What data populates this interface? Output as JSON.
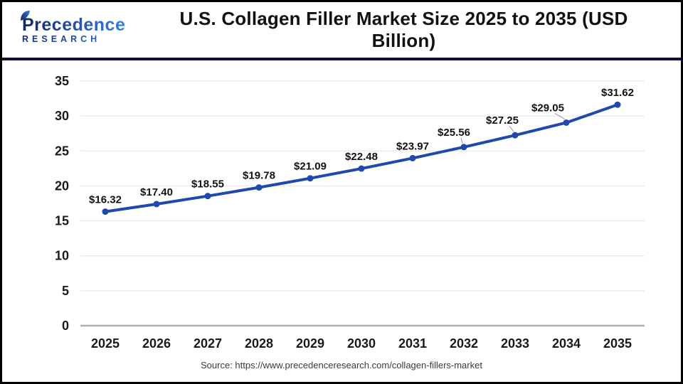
{
  "header": {
    "logo": {
      "line1": "Precedence",
      "line2": "RESEARCH"
    },
    "title": "U.S. Collagen Filler Market Size 2025 to 2035 (USD Billion)"
  },
  "footer": {
    "source": "Source: https://www.precedenceresearch.com/collagen-fillers-market"
  },
  "colors": {
    "accent_line": "#2149ac",
    "separator": "#0e1038",
    "page_border": "#000000",
    "grid": "#e8e8e8",
    "axis": "#b0b0b0",
    "leader": "#a6a6a6",
    "tick_text": "#1a1a1a",
    "label_text": "#111111",
    "source_text": "#3a3a3a",
    "logo_gradient_start": "#14265c",
    "logo_gradient_end": "#2f7fe0"
  },
  "chart_data": {
    "type": "line",
    "title": "U.S. Collagen Filler Market Size 2025 to 2035 (USD Billion)",
    "categories": [
      "2025",
      "2026",
      "2027",
      "2028",
      "2029",
      "2030",
      "2031",
      "2032",
      "2033",
      "2034",
      "2035"
    ],
    "series": [
      {
        "name": "U.S. Collagen Filler Market Size (USD Billion)",
        "values": [
          16.32,
          17.4,
          18.55,
          19.78,
          21.09,
          22.48,
          23.97,
          25.56,
          27.25,
          29.05,
          31.62
        ]
      }
    ],
    "point_labels": [
      "$16.32",
      "$17.40",
      "$18.55",
      "$19.78",
      "$21.09",
      "$22.48",
      "$23.97",
      "$25.56",
      "$27.25",
      "$29.05",
      "$31.62"
    ],
    "xlabel": "",
    "ylabel": "",
    "ylim": [
      0,
      35
    ],
    "yticks": [
      0,
      5,
      10,
      15,
      20,
      25,
      30,
      35
    ],
    "grid": "horizontal",
    "legend": "none",
    "line_color": "#2149ac",
    "marker": "circle",
    "callout_label_indices": [
      7,
      8,
      9
    ]
  }
}
